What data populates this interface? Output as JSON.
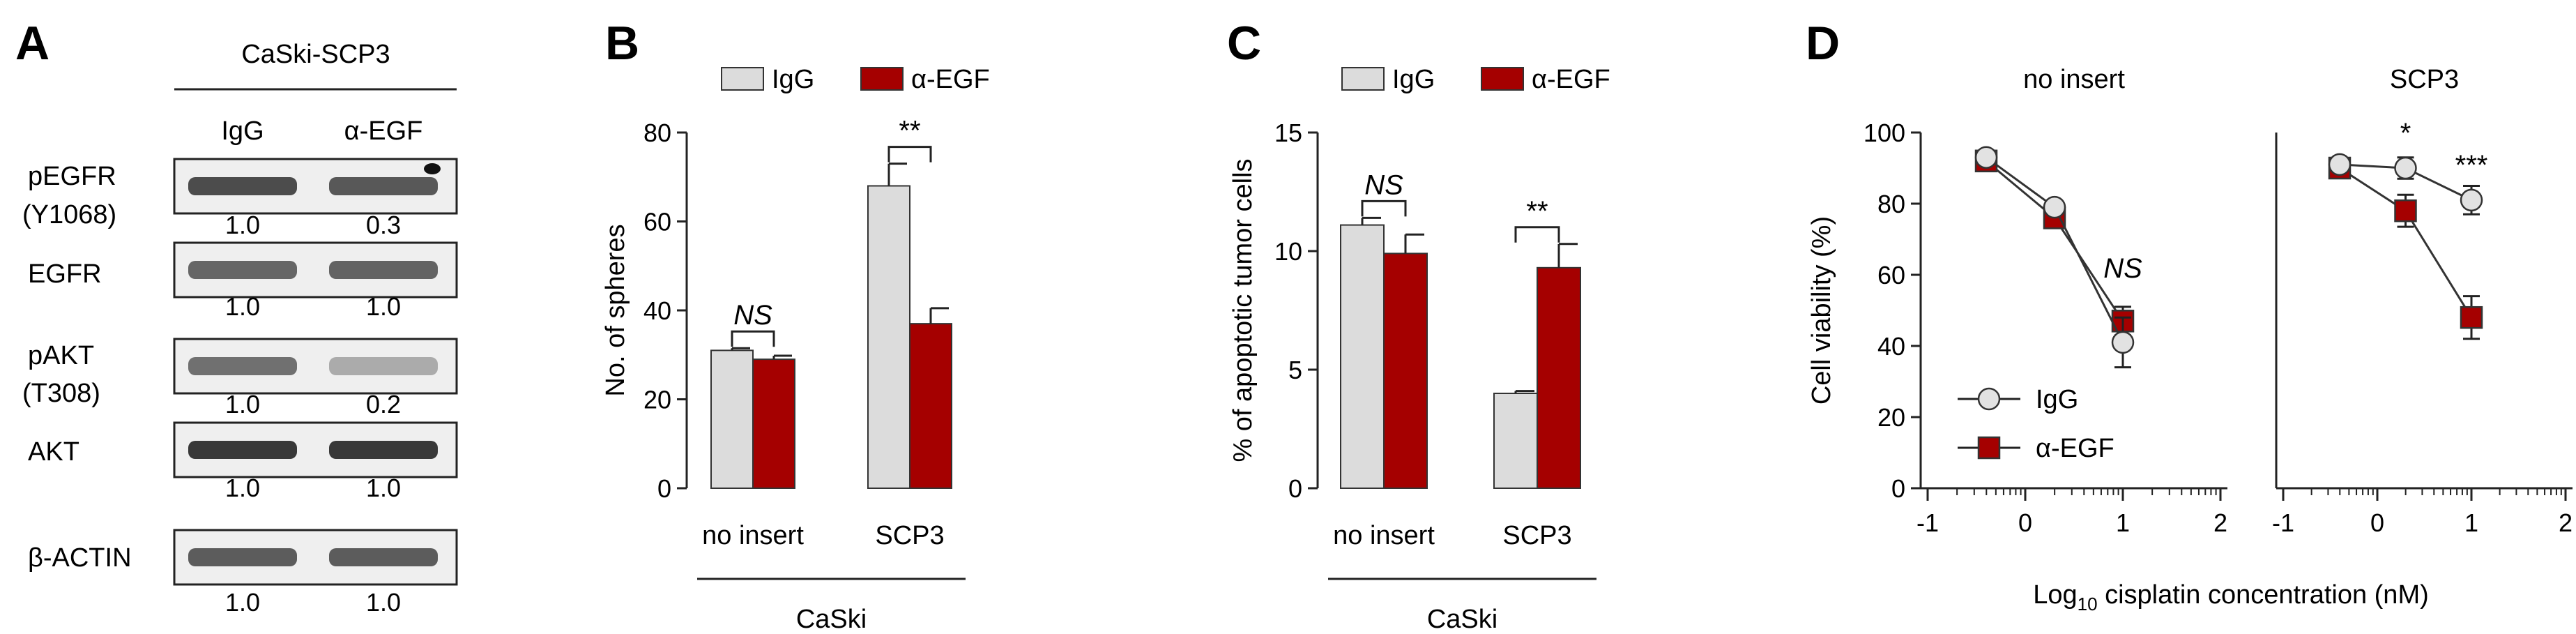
{
  "colors": {
    "igg": "#dcdcdc",
    "aegf": "#a50000",
    "axis": "#222222",
    "text": "#1a1a1a"
  },
  "panel_letters": {
    "a": "A",
    "b": "B",
    "c": "C",
    "d": "D"
  },
  "panel_a": {
    "header": "CaSki-SCP3",
    "lanes": [
      "IgG",
      "α-EGF"
    ],
    "blots": [
      {
        "label": "pEGFR",
        "sublabel": "(Y1068)",
        "values": [
          "1.0",
          "0.3"
        ]
      },
      {
        "label": "EGFR",
        "sublabel": "",
        "values": [
          "1.0",
          "1.0"
        ]
      },
      {
        "label": "pAKT",
        "sublabel": "(T308)",
        "values": [
          "1.0",
          "0.2"
        ]
      },
      {
        "label": "AKT",
        "sublabel": "",
        "values": [
          "1.0",
          "1.0"
        ]
      },
      {
        "label": "β-ACTIN",
        "sublabel": "",
        "values": [
          "1.0",
          "1.0"
        ]
      }
    ]
  },
  "chart_data": [
    {
      "panel": "B",
      "type": "bar",
      "title": "",
      "legend": [
        "IgG",
        "α-EGF"
      ],
      "categories": [
        "no insert",
        "SCP3"
      ],
      "group_label": "CaSki",
      "xlabel": "",
      "ylabel": "No. of spheres",
      "ylim": [
        0,
        80
      ],
      "yticks": [
        0,
        20,
        40,
        60,
        80
      ],
      "series": [
        {
          "name": "IgG",
          "values": [
            31,
            68
          ],
          "errors": [
            0.5,
            5
          ]
        },
        {
          "name": "α-EGF",
          "values": [
            29,
            37
          ],
          "errors": [
            0.8,
            3.5
          ]
        }
      ],
      "annotations": [
        {
          "category": "no insert",
          "text": "NS",
          "italic": true
        },
        {
          "category": "SCP3",
          "text": "**",
          "italic": false
        }
      ]
    },
    {
      "panel": "C",
      "type": "bar",
      "title": "",
      "legend": [
        "IgG",
        "α-EGF"
      ],
      "categories": [
        "no insert",
        "SCP3"
      ],
      "group_label": "CaSki",
      "xlabel": "",
      "ylabel": "% of apoptotic tumor cells",
      "ylim": [
        0,
        15
      ],
      "yticks": [
        0,
        5,
        10,
        15
      ],
      "series": [
        {
          "name": "IgG",
          "values": [
            11.1,
            4.0
          ],
          "errors": [
            0.3,
            0.1
          ]
        },
        {
          "name": "α-EGF",
          "values": [
            9.9,
            9.3
          ],
          "errors": [
            0.8,
            1.0
          ]
        }
      ],
      "annotations": [
        {
          "category": "no insert",
          "text": "NS",
          "italic": true
        },
        {
          "category": "SCP3",
          "text": "**",
          "italic": false
        }
      ]
    },
    {
      "panel": "D",
      "type": "line",
      "ylabel": "Cell viability (%)",
      "xlabel_main": "Log",
      "xlabel_sub": "10",
      "xlabel_rest": " cisplatin concentration (nM)",
      "xlim": [
        -1,
        2
      ],
      "xticks": [
        -1,
        0,
        1,
        2
      ],
      "ylim": [
        0,
        100
      ],
      "yticks": [
        0,
        20,
        40,
        60,
        80,
        100
      ],
      "legend": [
        {
          "name": "IgG",
          "marker": "circle"
        },
        {
          "name": "α-EGF",
          "marker": "square"
        }
      ],
      "subplots": [
        {
          "title": "no insert",
          "x": [
            -0.4,
            0.3,
            1.0
          ],
          "series": [
            {
              "name": "IgG",
              "values": [
                93,
                79,
                41
              ],
              "errors": [
                1.5,
                1.5,
                7
              ]
            },
            {
              "name": "α-EGF",
              "values": [
                92,
                76,
                47
              ],
              "errors": [
                1.5,
                1.5,
                4
              ]
            }
          ],
          "annotations": [
            {
              "x": 1.0,
              "y": 62,
              "text": "NS",
              "italic": true
            }
          ]
        },
        {
          "title": "SCP3",
          "x": [
            -0.4,
            0.3,
            1.0
          ],
          "series": [
            {
              "name": "IgG",
              "values": [
                91,
                90,
                81
              ],
              "errors": [
                1.5,
                3,
                4
              ]
            },
            {
              "name": "α-EGF",
              "values": [
                90,
                78,
                48
              ],
              "errors": [
                1.5,
                4.5,
                6
              ]
            }
          ],
          "annotations": [
            {
              "x": 0.3,
              "y": 100,
              "text": "*",
              "italic": false
            },
            {
              "x": 1.0,
              "y": 91,
              "text": "***",
              "italic": false
            }
          ]
        }
      ]
    }
  ]
}
